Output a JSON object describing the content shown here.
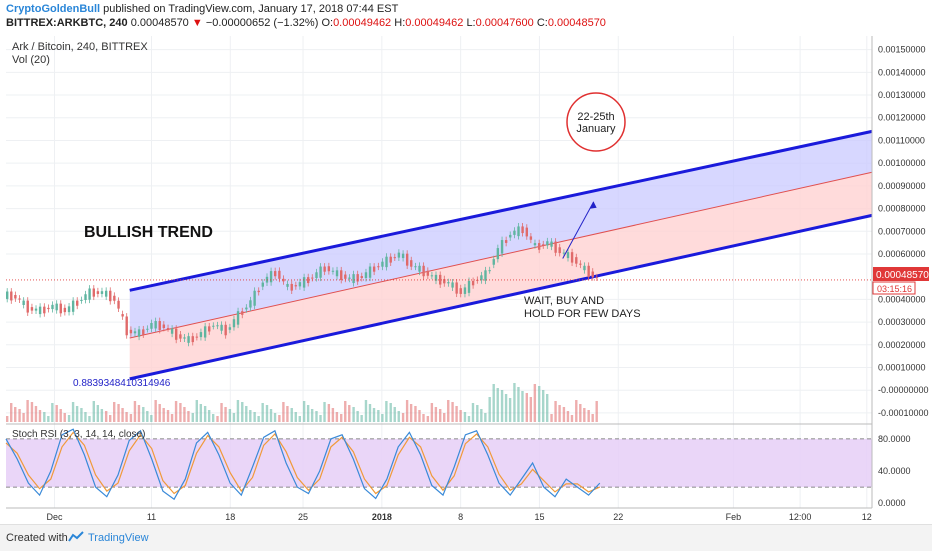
{
  "header": {
    "author": "CryptoGoldenBull",
    "published": " published on TradingView.com, January 17, 2018 07:44 EST",
    "symbol": "BITTREX:ARKBTC, 240",
    "last": "0.00048570",
    "change": "−0.00000652 (−1.32%)",
    "o_label": "O:",
    "o": "0.00049462",
    "h_label": "H:",
    "h": "0.00049462",
    "l_label": "L:",
    "l": "0.00047600",
    "c_label": "C:",
    "c": "0.00048570"
  },
  "pane_title": "Ark / Bitcoin, 240, BITTREX",
  "volume_label": "Vol (20)",
  "rsi_label": "Stoch RSI (3, 3, 14, 14, close)",
  "price_tag": "0.00048570",
  "countdown": "03:15:16",
  "footer": {
    "created": "Created with",
    "brand": "TradingView"
  },
  "annotations": {
    "trend": "BULLISH TREND",
    "circle_line1": "22-25th",
    "circle_line2": "January",
    "wait_line1": "WAIT, BUY AND",
    "wait_line2": "HOLD FOR FEW DAYS",
    "fib_value": "0.8839348410314946"
  },
  "colors": {
    "channel_line": "#1a1adb",
    "channel_fill_upper": "#c9c9ff",
    "channel_fill_lower": "#ffd2d2",
    "midline": "#e05050",
    "candle_up": "#5fb5a0",
    "candle_down": "#e06a6a",
    "rsi_k": "#3a8ad8",
    "rsi_d": "#f09a3a",
    "rsi_band": "#e6cff7",
    "circle": "#e03030"
  },
  "chart_data": {
    "type": "candlestick",
    "x_ticks": [
      "Dec",
      "11",
      "18",
      "25",
      "2018",
      "8",
      "15",
      "22",
      "Feb",
      "12:00",
      "12"
    ],
    "price_axis": {
      "ticks": [
        "0.00150000",
        "0.00140000",
        "0.00130000",
        "0.00120000",
        "0.00110000",
        "0.00100000",
        "0.00090000",
        "0.00080000",
        "0.00070000",
        "0.00060000",
        "0.00040000",
        "0.00030000",
        "0.00020000",
        "0.00010000",
        "-0.00000000",
        "-0.00010000"
      ],
      "tick_values": [
        0.0015,
        0.0014,
        0.0013,
        0.0012,
        0.0011,
        0.001,
        0.0009,
        0.0008,
        0.0007,
        0.0006,
        0.0004,
        0.0003,
        0.0002,
        0.0001,
        0.0,
        -0.0001
      ],
      "range": [
        -0.00014,
        0.00156
      ]
    },
    "rsi_axis": {
      "ticks": [
        "80.0000",
        "40.0000",
        "0.0000"
      ],
      "tick_values": [
        80,
        40,
        0
      ],
      "range": [
        -6,
        96
      ],
      "upper_band": 80,
      "lower_band": 20
    },
    "price_path": [
      [
        0,
        0.00042
      ],
      [
        2,
        0.00041
      ],
      [
        4,
        0.00036
      ],
      [
        6,
        0.00035
      ],
      [
        8,
        0.00037
      ],
      [
        10,
        0.00035
      ],
      [
        12,
        0.00039
      ],
      [
        14,
        0.00043
      ],
      [
        16,
        0.00043
      ],
      [
        18,
        0.0004
      ],
      [
        20,
        0.00026
      ],
      [
        22,
        0.00025
      ],
      [
        24,
        0.00029
      ],
      [
        26,
        0.00028
      ],
      [
        28,
        0.00024
      ],
      [
        30,
        0.00022
      ],
      [
        32,
        0.00025
      ],
      [
        34,
        0.00029
      ],
      [
        36,
        0.00026
      ],
      [
        38,
        0.00033
      ],
      [
        40,
        0.00039
      ],
      [
        42,
        0.00048
      ],
      [
        44,
        0.00052
      ],
      [
        46,
        0.00045
      ],
      [
        48,
        0.00047
      ],
      [
        50,
        0.0005
      ],
      [
        52,
        0.00054
      ],
      [
        54,
        0.00051
      ],
      [
        56,
        0.00049
      ],
      [
        58,
        0.0005
      ],
      [
        60,
        0.00054
      ],
      [
        62,
        0.00057
      ],
      [
        64,
        0.0006
      ],
      [
        66,
        0.00055
      ],
      [
        68,
        0.00052
      ],
      [
        70,
        0.00049
      ],
      [
        72,
        0.00047
      ],
      [
        74,
        0.00043
      ],
      [
        76,
        0.00048
      ],
      [
        78,
        0.00051
      ],
      [
        80,
        0.00062
      ],
      [
        82,
        0.00069
      ],
      [
        84,
        0.00071
      ],
      [
        86,
        0.00063
      ],
      [
        88,
        0.00065
      ],
      [
        90,
        0.00061
      ],
      [
        92,
        0.00058
      ],
      [
        94,
        0.00053
      ],
      [
        96,
        0.00049
      ]
    ],
    "channel": {
      "upper": [
        [
          20,
          0.00044
        ],
        [
          140,
          0.00114
        ]
      ],
      "mid": [
        [
          20,
          0.00023
        ],
        [
          140,
          0.00096
        ]
      ],
      "lower": [
        [
          20,
          5e-05
        ],
        [
          140,
          0.00077
        ]
      ]
    },
    "arrow": [
      [
        90,
        0.00058
      ],
      [
        95,
        0.00083
      ]
    ],
    "rsi_k": [
      80,
      55,
      25,
      10,
      40,
      85,
      92,
      60,
      20,
      8,
      35,
      78,
      90,
      55,
      15,
      5,
      30,
      75,
      88,
      60,
      25,
      10,
      45,
      82,
      90,
      50,
      20,
      12,
      40,
      80,
      85,
      55,
      18,
      6,
      30,
      70,
      88,
      60,
      22,
      10,
      45,
      85,
      90,
      60,
      25,
      10,
      30,
      50,
      20,
      8,
      30,
      20,
      10,
      25
    ],
    "rsi_d": [
      75,
      62,
      35,
      18,
      30,
      70,
      88,
      72,
      35,
      15,
      25,
      65,
      85,
      68,
      28,
      12,
      22,
      62,
      84,
      70,
      38,
      15,
      32,
      72,
      86,
      64,
      32,
      16,
      30,
      70,
      82,
      64,
      30,
      12,
      22,
      60,
      82,
      70,
      34,
      16,
      34,
      74,
      86,
      70,
      36,
      16,
      24,
      42,
      28,
      14,
      24,
      24,
      14,
      20
    ]
  }
}
